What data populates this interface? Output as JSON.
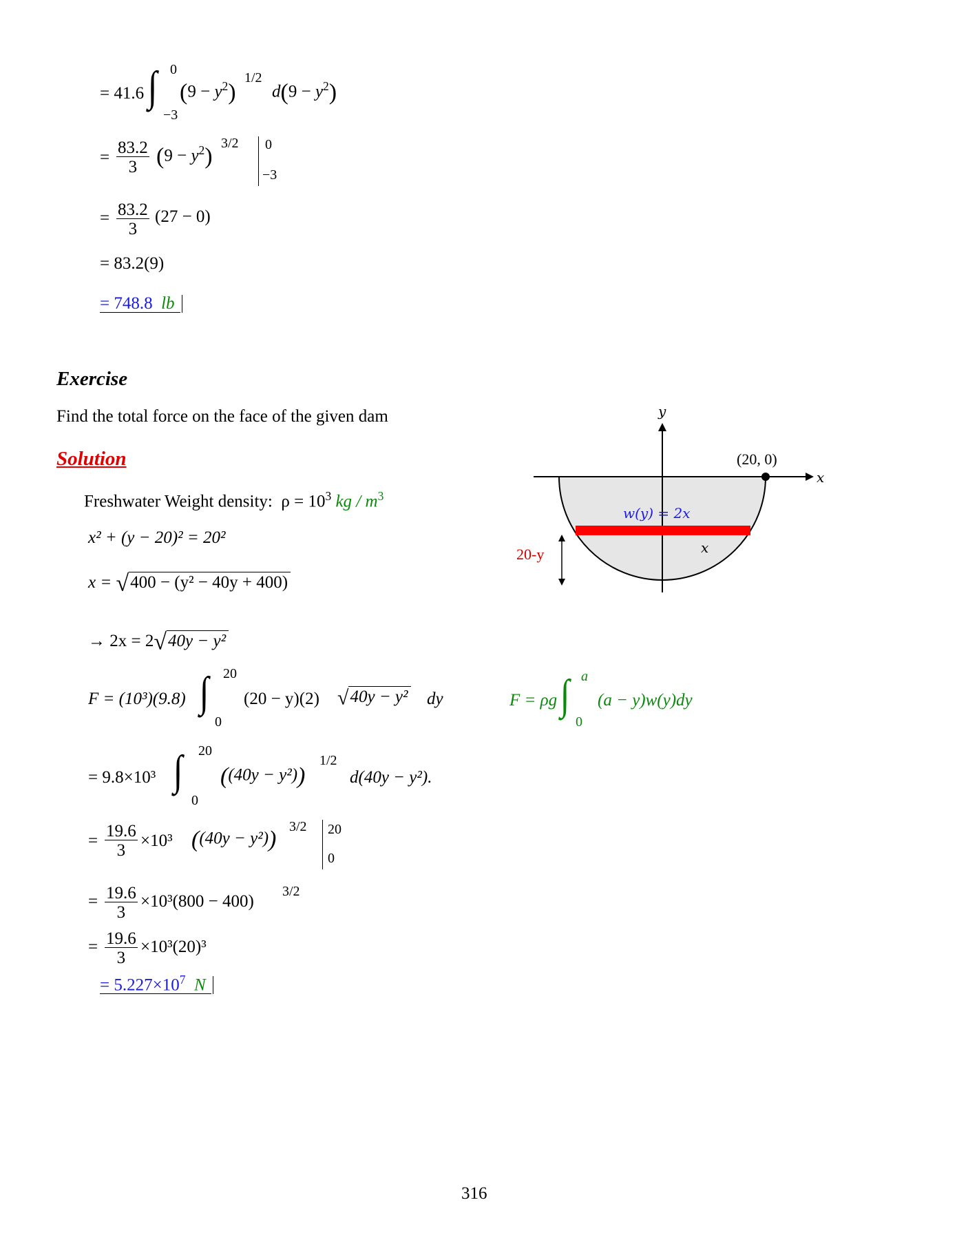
{
  "upper": {
    "l1_coef": "41.6",
    "l1_low": "−3",
    "l1_up": "0",
    "l1_pow": "1/2",
    "l2_num": "83.2",
    "l2_den": "3",
    "l2_pow": "3/2",
    "l2_up": "0",
    "l2_low": "−3",
    "l3_num": "83.2",
    "l3_den": "3",
    "l3_rest": "(27 − 0)",
    "l4": "= 83.2(9)",
    "result_value": "= 748.8",
    "result_unit": "lb"
  },
  "exercise": {
    "heading": "Exercise",
    "statement": "Find the total force on the face of the given dam",
    "solution_heading": "Solution",
    "density_label": "Freshwater Weight density:",
    "density_expr": "ρ = 10",
    "density_exp": "3",
    "density_unit": "kg / m",
    "density_unit_exp": "3",
    "eq1": "x² + (y − 20)² = 20²",
    "eq2_left": "x =",
    "eq2_root": "400 − (y² − 40y + 400)",
    "eq3_left": "→  2x = 2",
    "eq3_root": "40y − y²",
    "force_left": "F = (10³)(9.8)",
    "force_low": "0",
    "force_up": "20",
    "force_body": "(20 − y)(2)",
    "force_root": "40y − y²",
    "force_d": "dy",
    "s1_coef": "= 9.8×10³",
    "s1_low": "0",
    "s1_up": "20",
    "s1_body": "(40y − y²)",
    "s1_pow": "1/2",
    "s1_d": "d(40y − y²).",
    "s2_num": "19.6",
    "s2_den": "3",
    "s2_mid": "×10³",
    "s2_body": "(40y − y²)",
    "s2_pow": "3/2",
    "s2_up": "20",
    "s2_low": "0",
    "s3_num": "19.6",
    "s3_den": "3",
    "s3_rest": "×10³(800 − 400)",
    "s3_pow": "3/2",
    "s4_num": "19.6",
    "s4_den": "3",
    "s4_rest": "×10³(20)³",
    "result_value": "= 5.227×10",
    "result_exp": "7",
    "result_unit": "N"
  },
  "formula": {
    "left": "F = ρg",
    "low": "0",
    "up": "a",
    "body": "(a − y)w(y)dy"
  },
  "diagram": {
    "y_axis_label": "y",
    "x_axis_label": "x",
    "point_label": "(20, 0)",
    "strip_label": "w(y) = 2x",
    "x_label": "x",
    "depth_label": "20-y",
    "strip_color": "#ff0000",
    "fill_color": "#e6e6e6"
  },
  "page_number": "316"
}
